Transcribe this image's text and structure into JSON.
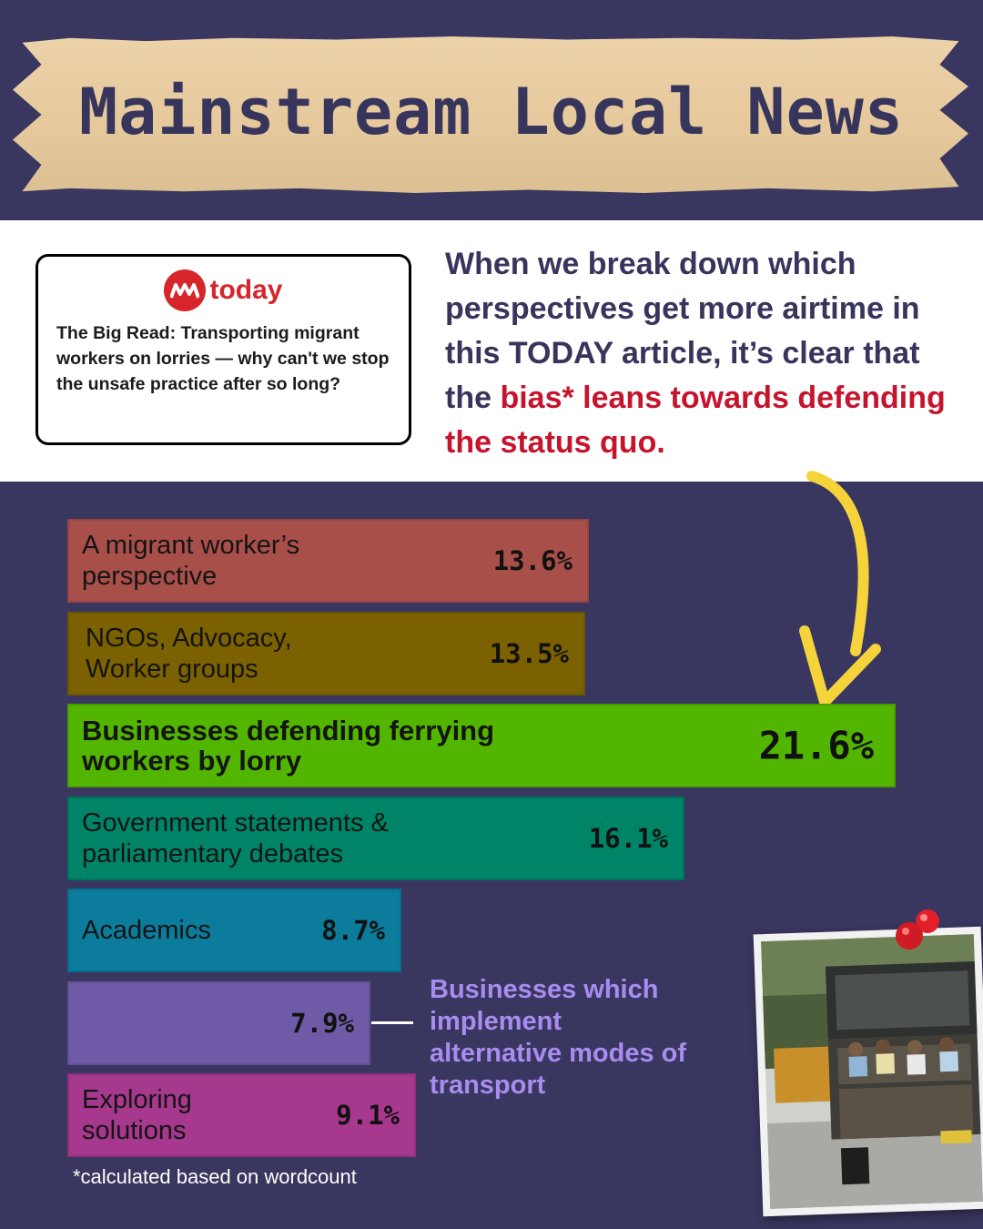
{
  "header": {
    "title": "Mainstream Local News"
  },
  "article_card": {
    "brand": "today",
    "headline": "The Big Read: Transporting migrant workers on lorries — why can't we stop the unsafe practice after so long?"
  },
  "intro": {
    "text_plain": "When we break down which perspectives get more airtime in this TODAY article, it’s clear that the ",
    "text_highlight": "bias* leans towards defending the status quo.",
    "highlight_color": "#c6142d"
  },
  "callout": {
    "text": "Businesses which implement alternative modes of transport",
    "color": "#a88cf0"
  },
  "footnote": "*calculated based on wordcount",
  "photo": {
    "icon": "lorry-photo",
    "pin_icon": "red-pushpin-icon"
  },
  "chart_data": {
    "type": "bar",
    "orientation": "horizontal",
    "unit": "%",
    "categories": [
      "A migrant worker’s\nperspective",
      "NGOs, Advocacy,\nWorker groups",
      "Businesses defending ferrying\nworkers by lorry",
      "Government statements &\nparliamentary debates",
      "Academics",
      "",
      "Exploring\nsolutions"
    ],
    "values": [
      13.6,
      13.5,
      21.6,
      16.1,
      8.7,
      7.9,
      9.1
    ],
    "labels": [
      "13.6%",
      "13.5%",
      "21.6%",
      "16.1%",
      "8.7%",
      "7.9%",
      "9.1%"
    ],
    "colors": [
      "#a84f4a",
      "#7b6100",
      "#52b600",
      "#008467",
      "#0b7c9c",
      "#6e5aa6",
      "#a6388e"
    ],
    "highlighted_index": 2,
    "xlim": [
      0,
      21.6
    ],
    "grid": false
  }
}
